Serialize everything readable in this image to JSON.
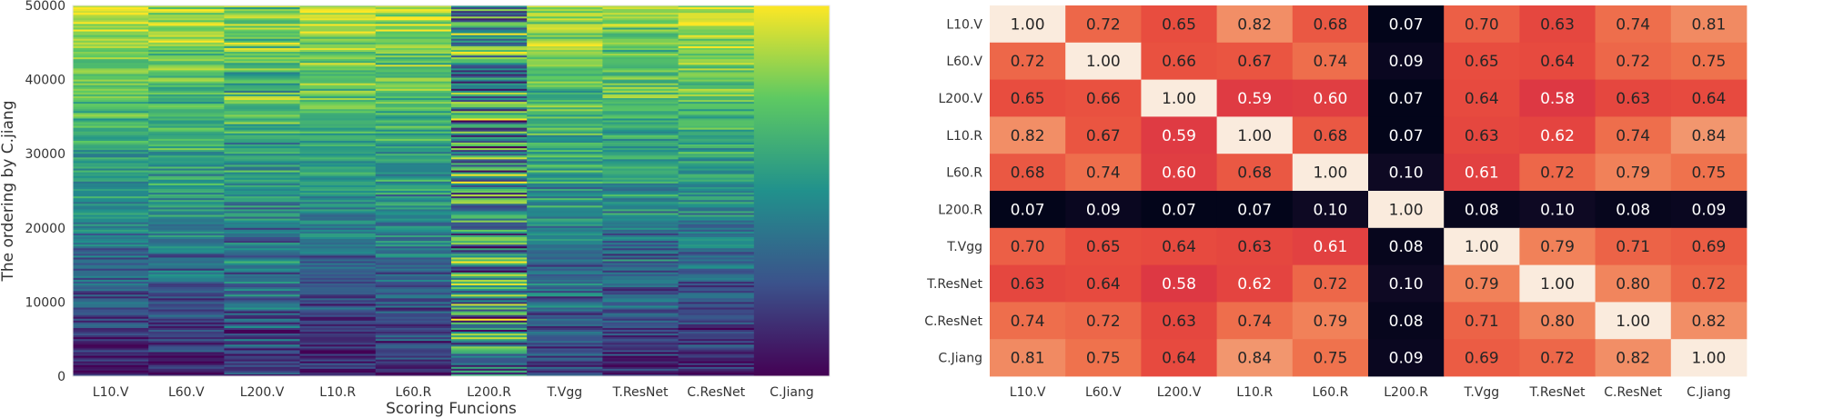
{
  "chart_data": [
    {
      "type": "heatmap",
      "title": "",
      "xlabel": "Scoring Funcions",
      "ylabel": "The ordering by C.jiang",
      "categories": [
        "L10.V",
        "L60.V",
        "L200.V",
        "L10.R",
        "L60.R",
        "L200.R",
        "T.Vgg",
        "T.ResNet",
        "C.ResNet",
        "C.Jiang"
      ],
      "ylim": [
        0,
        50000
      ],
      "yticks": [
        0,
        10000,
        20000,
        30000,
        40000,
        50000
      ],
      "ytick_labels": [
        "0",
        "10000",
        "20000",
        "30000",
        "40000",
        "50000"
      ],
      "colormap": "viridis",
      "grid": false,
      "legend": "none",
      "rank_correlation_with_C.Jiang": [
        0.81,
        0.75,
        0.64,
        0.84,
        0.75,
        0.09,
        0.69,
        0.72,
        0.82,
        1.0
      ]
    },
    {
      "type": "heatmap",
      "title": "",
      "xlabel": "",
      "ylabel": "",
      "x_labels": [
        "L10.V",
        "L60.V",
        "L200.V",
        "L10.R",
        "L60.R",
        "L200.R",
        "T.Vgg",
        "T.ResNet",
        "C.ResNet",
        "C.Jiang"
      ],
      "y_labels": [
        "L10.V",
        "L60.V",
        "L200.V",
        "L10.R",
        "L60.R",
        "L200.R",
        "T.Vgg",
        "T.ResNet",
        "C.ResNet",
        "C.Jiang"
      ],
      "colormap": "rocket",
      "value_range": [
        0.07,
        1.0
      ],
      "values": [
        [
          1.0,
          0.72,
          0.65,
          0.82,
          0.68,
          0.07,
          0.7,
          0.63,
          0.74,
          0.81
        ],
        [
          0.72,
          1.0,
          0.66,
          0.67,
          0.74,
          0.09,
          0.65,
          0.64,
          0.72,
          0.75
        ],
        [
          0.65,
          0.66,
          1.0,
          0.59,
          0.6,
          0.07,
          0.64,
          0.58,
          0.63,
          0.64
        ],
        [
          0.82,
          0.67,
          0.59,
          1.0,
          0.68,
          0.07,
          0.63,
          0.62,
          0.74,
          0.84
        ],
        [
          0.68,
          0.74,
          0.6,
          0.68,
          1.0,
          0.1,
          0.61,
          0.72,
          0.79,
          0.75
        ],
        [
          0.07,
          0.09,
          0.07,
          0.07,
          0.1,
          1.0,
          0.08,
          0.1,
          0.08,
          0.09
        ],
        [
          0.7,
          0.65,
          0.64,
          0.63,
          0.61,
          0.08,
          1.0,
          0.79,
          0.71,
          0.69
        ],
        [
          0.63,
          0.64,
          0.58,
          0.62,
          0.72,
          0.1,
          0.79,
          1.0,
          0.8,
          0.72
        ],
        [
          0.74,
          0.72,
          0.63,
          0.74,
          0.79,
          0.08,
          0.71,
          0.8,
          1.0,
          0.82
        ],
        [
          0.81,
          0.75,
          0.64,
          0.84,
          0.75,
          0.09,
          0.69,
          0.72,
          0.82,
          1.0
        ]
      ],
      "grid": false,
      "legend": "none"
    }
  ]
}
